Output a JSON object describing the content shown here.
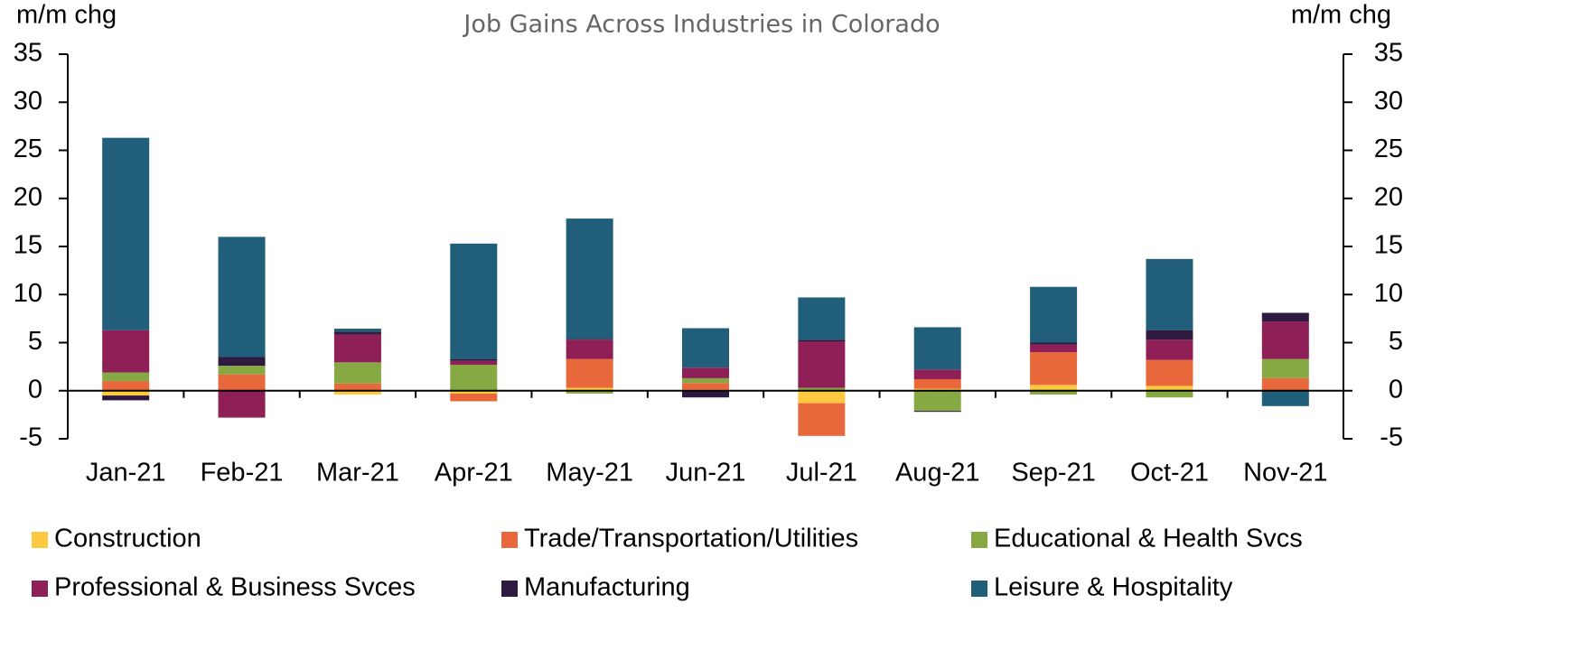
{
  "chart_data": {
    "type": "stacked_bar",
    "title": "Job Gains Across Industries in Colorado",
    "ylabel": "m/m chg",
    "y2label": "m/m chg",
    "categories": [
      "Jan-21",
      "Feb-21",
      "Mar-21",
      "Apr-21",
      "May-21",
      "Jun-21",
      "Jul-21",
      "Aug-21",
      "Sep-21",
      "Oct-21",
      "Nov-21"
    ],
    "series": [
      {
        "name": "Construction",
        "color": "#fdc940",
        "values": [
          -0.5,
          0.0,
          -0.4,
          -0.3,
          0.3,
          0.1,
          -1.3,
          0.2,
          0.6,
          0.5,
          0.0
        ]
      },
      {
        "name": "Trade/Transportation/Utilities",
        "color": "#e8673b",
        "values": [
          1.0,
          1.7,
          0.75,
          -0.8,
          3.0,
          0.7,
          -3.4,
          1.0,
          3.4,
          2.7,
          1.3
        ]
      },
      {
        "name": "Educational & Health Svcs",
        "color": "#86a944",
        "values": [
          0.9,
          0.9,
          2.2,
          2.7,
          -0.3,
          0.5,
          0.3,
          -2.1,
          -0.4,
          -0.7,
          2.0
        ]
      },
      {
        "name": "Professional & Business Svces",
        "color": "#8f1f57",
        "values": [
          4.4,
          -2.8,
          2.9,
          0.4,
          2.0,
          1.1,
          4.8,
          1.0,
          0.8,
          2.1,
          3.9
        ]
      },
      {
        "name": "Manufacturing",
        "color": "#2e1a3e",
        "values": [
          -0.5,
          0.9,
          0.3,
          0.2,
          0.1,
          -0.7,
          0.2,
          -0.1,
          0.2,
          1.0,
          0.9
        ]
      },
      {
        "name": "Leisure & Hospitality",
        "color": "#205e7a",
        "values": [
          20.0,
          12.5,
          0.3,
          12.0,
          12.5,
          4.1,
          4.4,
          4.4,
          5.8,
          7.4,
          -1.6
        ]
      }
    ],
    "ylim": [
      -5,
      35
    ],
    "yticks": [
      -5,
      0,
      5,
      10,
      15,
      20,
      25,
      30,
      35
    ],
    "y2lim": [
      -5,
      35
    ],
    "y2ticks": [
      -5,
      0,
      5,
      10,
      15,
      20,
      25,
      30,
      35
    ],
    "legend": "bottom"
  }
}
